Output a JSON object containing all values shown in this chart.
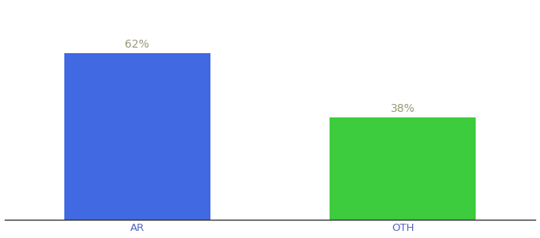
{
  "categories": [
    "AR",
    "OTH"
  ],
  "values": [
    62,
    38
  ],
  "bar_colors": [
    "#4169e1",
    "#3dcc3d"
  ],
  "label_texts": [
    "62%",
    "38%"
  ],
  "background_color": "#ffffff",
  "ylim": [
    0,
    80
  ],
  "bar_width": 0.55,
  "label_fontsize": 10,
  "tick_fontsize": 9.5,
  "label_color": "#999977",
  "tick_color": "#5566bb"
}
